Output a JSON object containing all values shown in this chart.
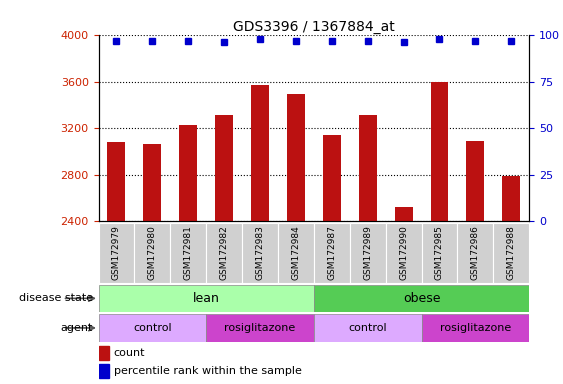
{
  "title": "GDS3396 / 1367884_at",
  "samples": [
    "GSM172979",
    "GSM172980",
    "GSM172981",
    "GSM172982",
    "GSM172983",
    "GSM172984",
    "GSM172987",
    "GSM172989",
    "GSM172990",
    "GSM172985",
    "GSM172986",
    "GSM172988"
  ],
  "bar_values": [
    3080,
    3060,
    3230,
    3310,
    3570,
    3490,
    3140,
    3310,
    2520,
    3600,
    3090,
    2790
  ],
  "percentile_values": [
    97,
    97,
    97,
    96,
    98,
    97,
    97,
    97,
    96,
    98,
    97,
    97
  ],
  "bar_color": "#bb1111",
  "dot_color": "#0000cc",
  "ylim_left": [
    2400,
    4000
  ],
  "ylim_right": [
    0,
    100
  ],
  "yticks_left": [
    2400,
    2800,
    3200,
    3600,
    4000
  ],
  "yticks_right": [
    0,
    25,
    50,
    75,
    100
  ],
  "disease_color_lean": "#aaffaa",
  "disease_color_obese": "#55cc55",
  "agent_color_control": "#ddaaff",
  "agent_color_rosi": "#cc44cc",
  "label_disease_state": "disease state",
  "label_agent": "agent",
  "legend_count": "count",
  "legend_percentile": "percentile rank within the sample",
  "tick_label_color_left": "#cc2200",
  "tick_label_color_right": "#0000cc",
  "gray_bg": "#d0d0d0"
}
